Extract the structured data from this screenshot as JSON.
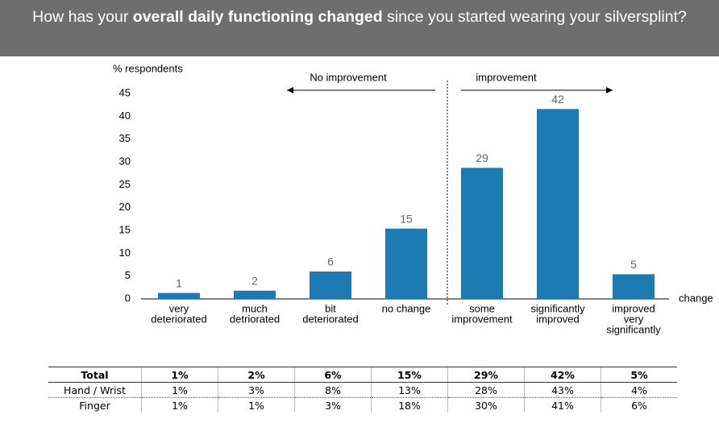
{
  "title": [
    {
      "text": "How has your"
    },
    {
      "text": "overall daily functioning changed",
      "bold": true
    },
    {
      "text": "since you started wearing your silversplint?"
    }
  ],
  "chart_data": {
    "type": "bar",
    "y_label": "% respondents",
    "x_label": "change",
    "categories": [
      [
        "very",
        "deteriorated"
      ],
      [
        "much",
        "detriorated"
      ],
      [
        "bit",
        "deteriorated"
      ],
      [
        "no change"
      ],
      [
        "some",
        "improvement"
      ],
      [
        "significantly",
        "improved"
      ],
      [
        "improved",
        "very",
        "significantly"
      ]
    ],
    "values": [
      1.3,
      1.8,
      6,
      15.4,
      28.7,
      41.6,
      5.4
    ],
    "value_labels": [
      "1",
      "2",
      "6",
      "15",
      "29",
      "42",
      "5"
    ],
    "color": "#1b7bb2",
    "ylim": [
      0,
      45
    ],
    "yticks": [
      0,
      5,
      10,
      15,
      20,
      25,
      30,
      35,
      40,
      45
    ],
    "annotations": [
      {
        "text": "No improvement",
        "direction": "left"
      },
      {
        "text": "improvement",
        "direction": "right"
      }
    ]
  },
  "table": {
    "header": [
      "Total",
      "1%",
      "2%",
      "6%",
      "15%",
      "29%",
      "42%",
      "5%"
    ],
    "rows": [
      [
        "Hand / Wrist",
        "1%",
        "3%",
        "8%",
        "13%",
        "28%",
        "43%",
        "4%"
      ],
      [
        "Finger",
        "1%",
        "1%",
        "3%",
        "18%",
        "30%",
        "41%",
        "6%"
      ]
    ]
  }
}
